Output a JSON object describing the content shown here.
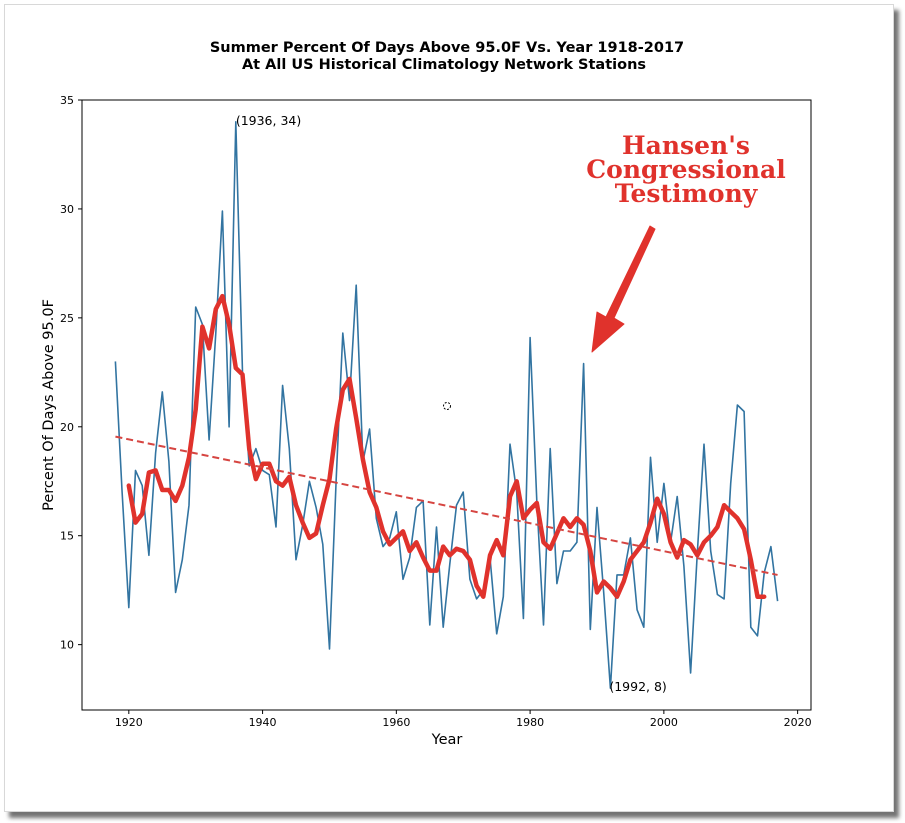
{
  "chart_data": {
    "type": "line",
    "title": "Summer Percent Of Days Above 95.0F Vs. Year 1918-2017",
    "subtitle": "At All US Historical Climatology Network Stations",
    "xlabel": "Year",
    "ylabel": "Percent Of Days Above 95.0F",
    "xlim": [
      1913,
      2022
    ],
    "ylim": [
      7,
      35
    ],
    "xticks": [
      1920,
      1940,
      1960,
      1980,
      2000,
      2020
    ],
    "yticks": [
      10,
      15,
      20,
      25,
      30,
      35
    ],
    "grid": false,
    "series": [
      {
        "role": "annual",
        "color": "#3274a1",
        "x": [
          1918,
          1919,
          1920,
          1921,
          1922,
          1923,
          1924,
          1925,
          1926,
          1927,
          1928,
          1929,
          1930,
          1931,
          1932,
          1933,
          1934,
          1935,
          1936,
          1937,
          1938,
          1939,
          1940,
          1941,
          1942,
          1943,
          1944,
          1945,
          1946,
          1947,
          1948,
          1949,
          1950,
          1951,
          1952,
          1953,
          1954,
          1955,
          1956,
          1957,
          1958,
          1959,
          1960,
          1961,
          1962,
          1963,
          1964,
          1965,
          1966,
          1967,
          1968,
          1969,
          1970,
          1971,
          1972,
          1973,
          1974,
          1975,
          1976,
          1977,
          1978,
          1979,
          1980,
          1981,
          1982,
          1983,
          1984,
          1985,
          1986,
          1987,
          1988,
          1989,
          1990,
          1991,
          1992,
          1993,
          1994,
          1995,
          1996,
          1997,
          1998,
          1999,
          2000,
          2001,
          2002,
          2003,
          2004,
          2005,
          2006,
          2007,
          2008,
          2009,
          2010,
          2011,
          2012,
          2013,
          2014,
          2015,
          2016,
          2017
        ],
        "y": [
          23.0,
          17.0,
          11.7,
          18.0,
          17.3,
          14.1,
          18.8,
          21.6,
          18.4,
          12.4,
          13.9,
          16.4,
          25.5,
          24.7,
          19.4,
          24.3,
          29.9,
          20.0,
          34.0,
          22.5,
          18.2,
          19.0,
          18.0,
          17.8,
          15.4,
          21.9,
          19.0,
          13.9,
          15.5,
          17.5,
          16.3,
          14.6,
          9.8,
          17.5,
          24.3,
          21.2,
          26.5,
          18.4,
          19.9,
          15.8,
          14.5,
          14.9,
          16.1,
          13.0,
          14.0,
          16.3,
          16.6,
          10.9,
          15.4,
          10.8,
          13.7,
          16.4,
          17.0,
          13.0,
          12.1,
          12.5,
          14.0,
          10.5,
          12.2,
          19.2,
          17.0,
          11.2,
          24.1,
          16.6,
          10.9,
          19.0,
          12.8,
          14.3,
          14.3,
          14.7,
          22.9,
          10.7,
          16.3,
          12.4,
          8.0,
          13.2,
          13.2,
          14.9,
          11.6,
          10.8,
          18.6,
          14.7,
          17.4,
          14.7,
          16.8,
          13.6,
          8.7,
          14.2,
          19.2,
          14.3,
          12.3,
          12.1,
          17.4,
          21.0,
          20.7,
          10.8,
          10.4,
          13.3,
          14.5,
          12.0
        ]
      },
      {
        "role": "smoothed",
        "color": "#e0322c",
        "x": [
          1920,
          1921,
          1922,
          1923,
          1924,
          1925,
          1926,
          1927,
          1928,
          1929,
          1930,
          1931,
          1932,
          1933,
          1934,
          1935,
          1936,
          1937,
          1938,
          1939,
          1940,
          1941,
          1942,
          1943,
          1944,
          1945,
          1946,
          1947,
          1948,
          1949,
          1950,
          1951,
          1952,
          1953,
          1954,
          1955,
          1956,
          1957,
          1958,
          1959,
          1960,
          1961,
          1962,
          1963,
          1964,
          1965,
          1966,
          1967,
          1968,
          1969,
          1970,
          1971,
          1972,
          1973,
          1974,
          1975,
          1976,
          1977,
          1978,
          1979,
          1980,
          1981,
          1982,
          1983,
          1984,
          1985,
          1986,
          1987,
          1988,
          1989,
          1990,
          1991,
          1992,
          1993,
          1994,
          1995,
          1996,
          1997,
          1998,
          1999,
          2000,
          2001,
          2002,
          2003,
          2004,
          2005,
          2006,
          2007,
          2008,
          2009,
          2010,
          2011,
          2012,
          2013,
          2014,
          2015
        ],
        "y": [
          17.3,
          15.6,
          16.0,
          17.9,
          18.0,
          17.1,
          17.1,
          16.6,
          17.3,
          18.6,
          20.8,
          24.6,
          23.6,
          25.4,
          26.0,
          24.7,
          22.7,
          22.4,
          19.0,
          17.6,
          18.3,
          18.3,
          17.5,
          17.3,
          17.7,
          16.4,
          15.6,
          14.9,
          15.1,
          16.4,
          17.6,
          19.9,
          21.7,
          22.2,
          20.4,
          18.5,
          17.0,
          16.3,
          15.2,
          14.6,
          14.9,
          15.2,
          14.3,
          14.7,
          14.0,
          13.4,
          13.4,
          14.5,
          14.1,
          14.4,
          14.3,
          13.9,
          12.7,
          12.2,
          14.1,
          14.8,
          14.1,
          16.8,
          17.5,
          15.8,
          16.2,
          16.5,
          14.7,
          14.4,
          15.1,
          15.8,
          15.4,
          15.8,
          15.5,
          14.3,
          12.4,
          12.9,
          12.6,
          12.2,
          12.9,
          13.9,
          14.3,
          14.7,
          15.6,
          16.7,
          16.0,
          14.7,
          14.0,
          14.8,
          14.6,
          14.1,
          14.7,
          15.0,
          15.4,
          16.4,
          16.1,
          15.8,
          15.3,
          13.9,
          12.2,
          12.2
        ]
      },
      {
        "role": "trend",
        "color": "#d64541",
        "x": [
          1918,
          2017
        ],
        "y": [
          19.55,
          13.2
        ]
      }
    ],
    "annotations": [
      {
        "text": "(1936, 34)",
        "x": 1936,
        "y": 34
      },
      {
        "text": "(1992, 8)",
        "x": 1992,
        "y": 8
      }
    ],
    "callout": {
      "lines": [
        "Hansen's",
        "Congressional",
        "Testimony"
      ],
      "color": "#e0322c",
      "points_to": {
        "x": 1988,
        "y": 22.9
      }
    }
  }
}
